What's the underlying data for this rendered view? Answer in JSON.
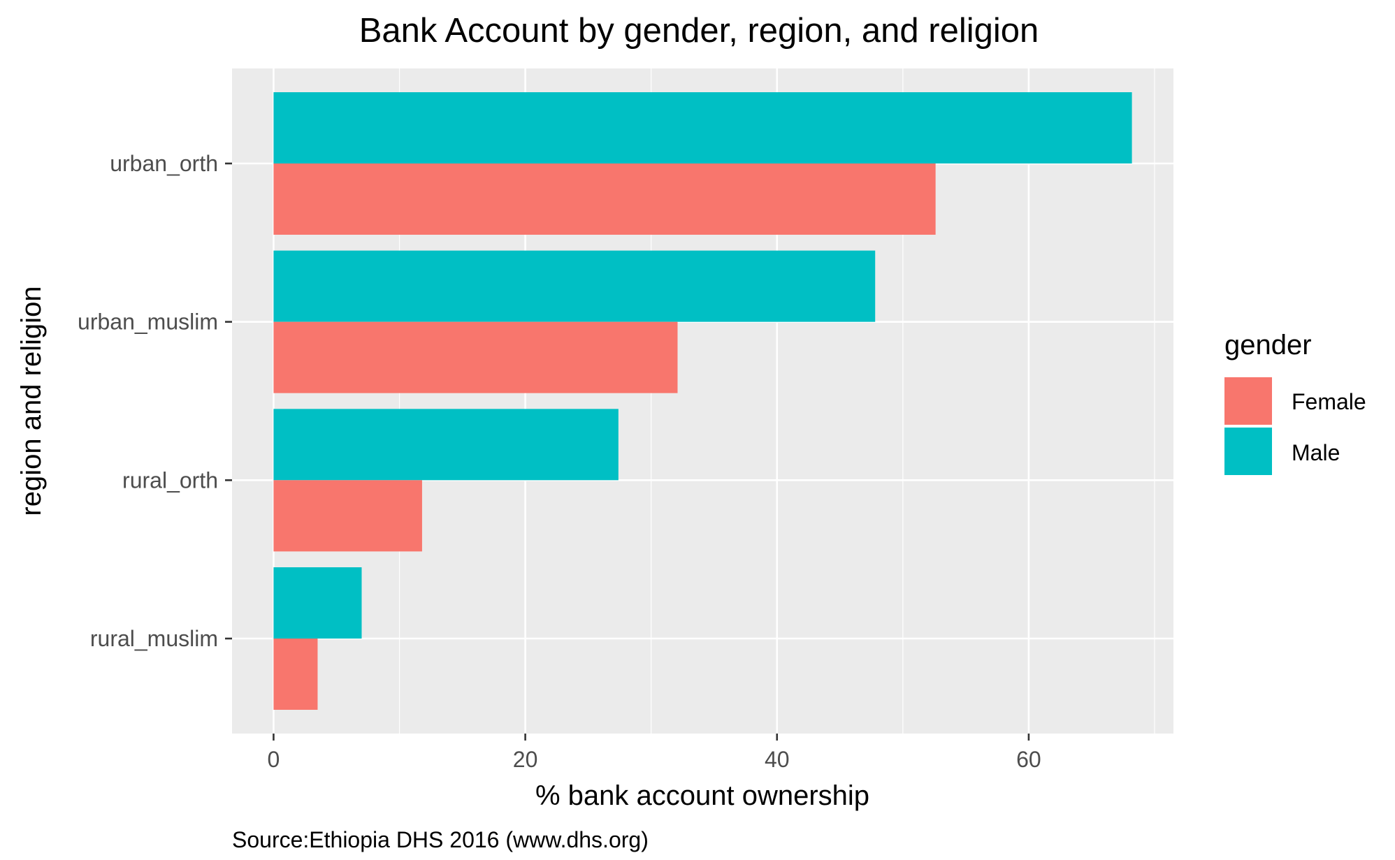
{
  "chart_data": {
    "type": "bar",
    "orientation": "horizontal",
    "title": "Bank Account by gender, region, and religion",
    "xlabel": "% bank account ownership",
    "ylabel": "region and religion",
    "caption": "Source:Ethiopia DHS 2016 (www.dhs.org)",
    "categories": [
      "urban_orth",
      "urban_muslim",
      "rural_orth",
      "rural_muslim"
    ],
    "series": [
      {
        "name": "Female",
        "color": "#F8766D",
        "values": [
          52.6,
          32.1,
          11.8,
          3.5
        ]
      },
      {
        "name": "Male",
        "color": "#00BFC4",
        "values": [
          68.2,
          47.8,
          27.4,
          7.0
        ]
      }
    ],
    "xlim": [
      -3.3,
      71.5
    ],
    "xticks": [
      0,
      20,
      40,
      60
    ],
    "grid": true,
    "panel_background": "#EBEBEB",
    "legend": {
      "title": "gender",
      "position": "right",
      "entries": [
        "Female",
        "Male"
      ]
    }
  }
}
